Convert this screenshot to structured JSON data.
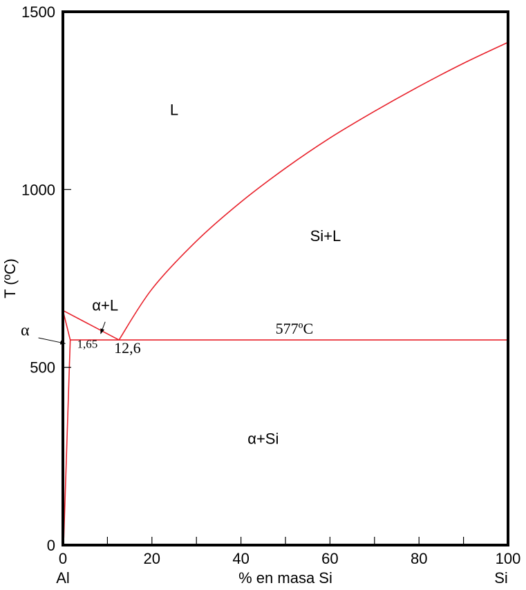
{
  "chart_data": {
    "type": "line",
    "title": "",
    "xlabel": "% en masa Si",
    "ylabel": "T (ºC)",
    "xlim": [
      0,
      100
    ],
    "ylim": [
      0,
      1500
    ],
    "x_ticks": [
      0,
      20,
      40,
      60,
      80,
      100
    ],
    "x_minor_step": 10,
    "y_ticks": [
      0,
      500,
      1000,
      1500
    ],
    "x_end_labels": {
      "left": "Al",
      "right": "Si"
    },
    "line_color": "#e8202a",
    "series": [
      {
        "points": [
          [
            0,
            660
          ],
          [
            12.6,
            577
          ]
        ]
      },
      {
        "points": [
          [
            12.6,
            577
          ],
          [
            20,
            720
          ],
          [
            30,
            855
          ],
          [
            40,
            965
          ],
          [
            50,
            1060
          ],
          [
            60,
            1145
          ],
          [
            70,
            1220
          ],
          [
            80,
            1290
          ],
          [
            90,
            1355
          ],
          [
            100,
            1414
          ]
        ]
      },
      {
        "points": [
          [
            1.65,
            577
          ],
          [
            100,
            577
          ]
        ]
      },
      {
        "points": [
          [
            0,
            660
          ],
          [
            1.65,
            577
          ]
        ]
      },
      {
        "points": [
          [
            0.2,
            20
          ],
          [
            1.65,
            577
          ]
        ]
      }
    ],
    "phase_labels": [
      {
        "text": "L",
        "x": 25,
        "y": 1210
      },
      {
        "text": "Si+L",
        "x": 59,
        "y": 855
      },
      {
        "text": "α+L",
        "x": 9.5,
        "y": 660
      },
      {
        "text": "α+Si",
        "x": 45,
        "y": 285
      }
    ],
    "annotations": [
      {
        "text": "577ºC",
        "x": 52,
        "y": 595
      },
      {
        "text": "1,65",
        "x": 5.5,
        "y": 555
      },
      {
        "text": "12,6",
        "x": 14.5,
        "y": 540
      },
      {
        "text": "α",
        "x": -8.5,
        "y": 590
      }
    ],
    "arrows": [
      {
        "from": [
          -5.5,
          583
        ],
        "to": [
          0.5,
          567
        ]
      },
      {
        "from": [
          9.5,
          628
        ],
        "to": [
          8.5,
          595
        ]
      }
    ]
  }
}
